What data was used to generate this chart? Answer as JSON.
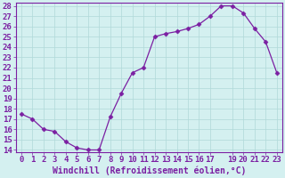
{
  "x": [
    0,
    1,
    2,
    3,
    4,
    5,
    6,
    7,
    8,
    9,
    10,
    11,
    12,
    13,
    14,
    15,
    16,
    17,
    18,
    19,
    20,
    21,
    22,
    23
  ],
  "y": [
    17.5,
    17.0,
    16.0,
    15.8,
    14.8,
    14.2,
    14.0,
    14.0,
    17.2,
    19.5,
    21.5,
    22.0,
    25.0,
    25.3,
    25.5,
    25.8,
    26.2,
    27.0,
    28.0,
    28.0,
    27.3,
    25.8,
    24.5,
    21.5
  ],
  "line_color": "#7b1fa2",
  "marker": "D",
  "marker_size": 2.5,
  "bg_color": "#d4f0f0",
  "grid_color": "#b0d8d8",
  "xlabel": "Windchill (Refroidissement éolien,°C)",
  "xlabel_color": "#7b1fa2",
  "tick_color": "#7b1fa2",
  "ylim": [
    14,
    28
  ],
  "xlim": [
    -0.5,
    23.5
  ],
  "yticks": [
    14,
    15,
    16,
    17,
    18,
    19,
    20,
    21,
    22,
    23,
    24,
    25,
    26,
    27,
    28
  ],
  "xticks": [
    0,
    1,
    2,
    3,
    4,
    5,
    6,
    7,
    8,
    9,
    10,
    11,
    12,
    13,
    14,
    15,
    16,
    17,
    19,
    20,
    21,
    22,
    23
  ],
  "font_size": 6.5,
  "xlabel_fontsize": 7.0
}
